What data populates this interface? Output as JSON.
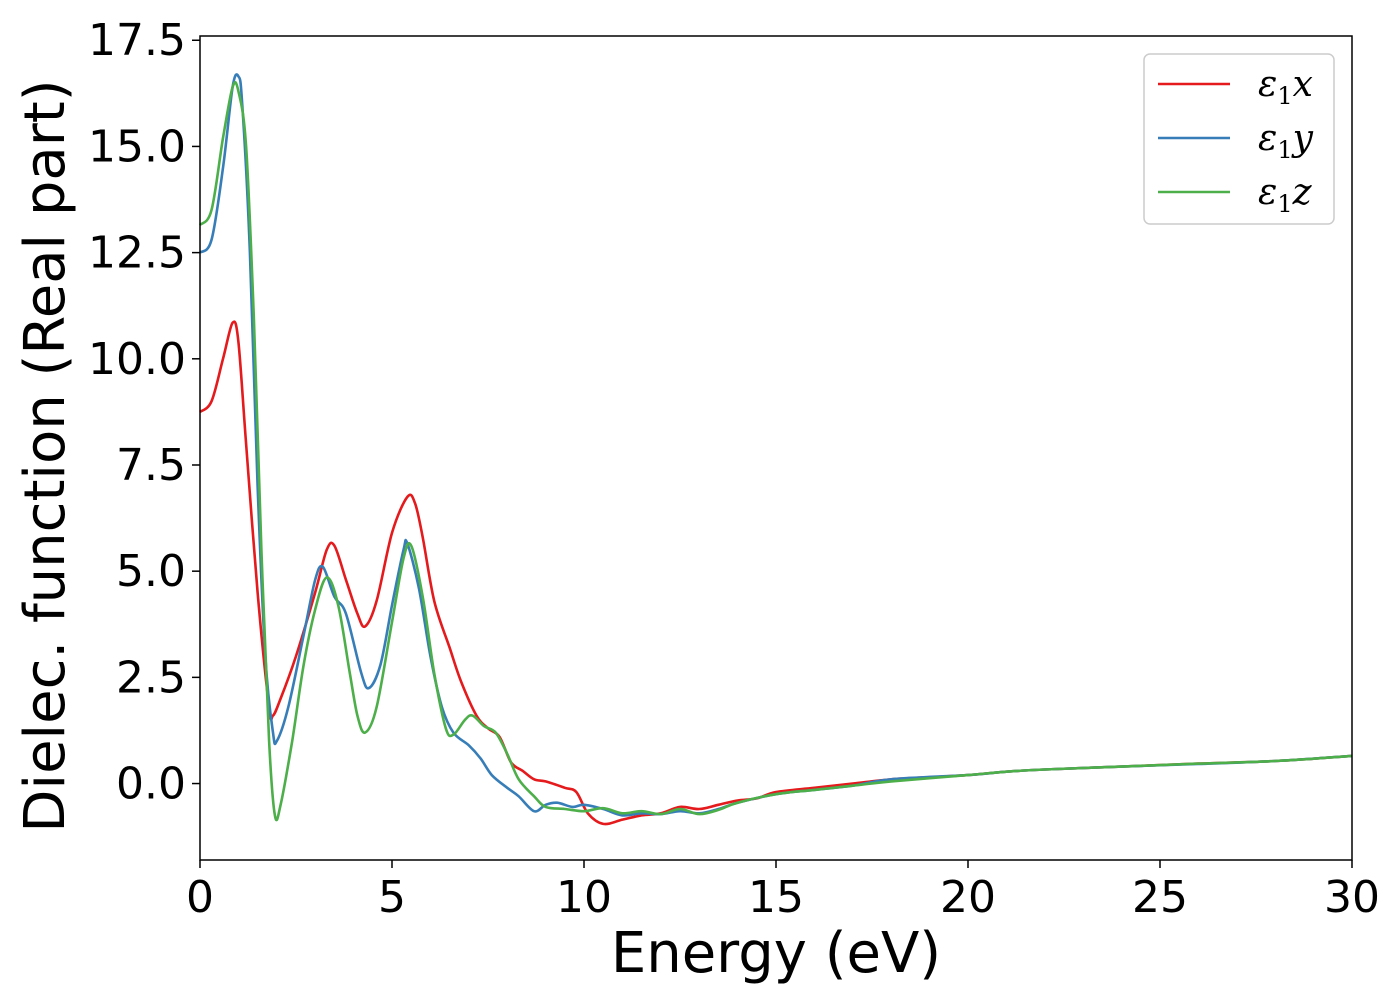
{
  "chart_data": {
    "type": "line",
    "title": "",
    "xlabel": "Energy (eV)",
    "ylabel": "Dielec. function (Real part)",
    "xlim": [
      0,
      30
    ],
    "ylim": [
      -1.8,
      17.6
    ],
    "xticks": [
      0,
      5,
      10,
      15,
      20,
      25,
      30
    ],
    "xtick_labels": [
      "0",
      "5",
      "10",
      "15",
      "20",
      "25",
      "30"
    ],
    "yticks": [
      0,
      2.5,
      5,
      7.5,
      10,
      12.5,
      15,
      17.5
    ],
    "ytick_labels": [
      "0.0",
      "2.5",
      "5.0",
      "7.5",
      "10.0",
      "12.5",
      "15.0",
      "17.5"
    ],
    "grid": false,
    "legend_position": "top-right",
    "series": [
      {
        "name": "ε1x",
        "legend_base": "ε",
        "legend_sub": "1",
        "legend_tail": "x",
        "color": "#e41a1c",
        "points": [
          [
            0,
            8.75
          ],
          [
            0.3,
            9.0
          ],
          [
            0.6,
            10.0
          ],
          [
            0.85,
            10.85
          ],
          [
            1.0,
            10.4
          ],
          [
            1.2,
            8.0
          ],
          [
            1.5,
            4.5
          ],
          [
            1.8,
            1.8
          ],
          [
            1.9,
            1.6
          ],
          [
            2.1,
            2.0
          ],
          [
            2.5,
            3.0
          ],
          [
            3.0,
            4.5
          ],
          [
            3.3,
            5.5
          ],
          [
            3.5,
            5.6
          ],
          [
            3.8,
            4.8
          ],
          [
            4.1,
            4.0
          ],
          [
            4.3,
            3.7
          ],
          [
            4.6,
            4.3
          ],
          [
            5.0,
            5.9
          ],
          [
            5.4,
            6.75
          ],
          [
            5.6,
            6.6
          ],
          [
            5.8,
            5.8
          ],
          [
            6.1,
            4.3
          ],
          [
            6.5,
            3.2
          ],
          [
            6.8,
            2.4
          ],
          [
            7.2,
            1.6
          ],
          [
            7.5,
            1.3
          ],
          [
            7.8,
            1.1
          ],
          [
            8.1,
            0.5
          ],
          [
            8.4,
            0.3
          ],
          [
            8.7,
            0.1
          ],
          [
            9.0,
            0.05
          ],
          [
            9.5,
            -0.1
          ],
          [
            9.8,
            -0.2
          ],
          [
            10.1,
            -0.7
          ],
          [
            10.5,
            -0.95
          ],
          [
            11.0,
            -0.85
          ],
          [
            11.5,
            -0.75
          ],
          [
            12.0,
            -0.7
          ],
          [
            12.5,
            -0.55
          ],
          [
            13.0,
            -0.6
          ],
          [
            13.5,
            -0.5
          ],
          [
            14.0,
            -0.4
          ],
          [
            14.5,
            -0.35
          ],
          [
            15.0,
            -0.2
          ],
          [
            16.0,
            -0.1
          ],
          [
            17.0,
            0.0
          ],
          [
            18.0,
            0.1
          ],
          [
            19.0,
            0.15
          ],
          [
            20.0,
            0.2
          ],
          [
            21.0,
            0.28
          ],
          [
            22.0,
            0.33
          ],
          [
            24.0,
            0.4
          ],
          [
            26.0,
            0.47
          ],
          [
            28.0,
            0.53
          ],
          [
            30.0,
            0.65
          ]
        ]
      },
      {
        "name": "ε1y",
        "legend_base": "ε",
        "legend_sub": "1",
        "legend_tail": "y",
        "color": "#377eb8",
        "points": [
          [
            0,
            12.5
          ],
          [
            0.3,
            12.8
          ],
          [
            0.6,
            14.5
          ],
          [
            0.85,
            16.4
          ],
          [
            1.0,
            16.65
          ],
          [
            1.1,
            16.0
          ],
          [
            1.3,
            12.5
          ],
          [
            1.5,
            7.0
          ],
          [
            1.7,
            3.0
          ],
          [
            1.9,
            1.2
          ],
          [
            2.0,
            1.0
          ],
          [
            2.3,
            1.8
          ],
          [
            2.7,
            3.5
          ],
          [
            3.0,
            4.8
          ],
          [
            3.2,
            5.1
          ],
          [
            3.5,
            4.4
          ],
          [
            3.8,
            4.0
          ],
          [
            4.2,
            2.6
          ],
          [
            4.4,
            2.25
          ],
          [
            4.7,
            2.8
          ],
          [
            5.0,
            4.2
          ],
          [
            5.3,
            5.5
          ],
          [
            5.4,
            5.65
          ],
          [
            5.7,
            4.6
          ],
          [
            6.0,
            3.0
          ],
          [
            6.3,
            1.8
          ],
          [
            6.6,
            1.2
          ],
          [
            7.0,
            0.9
          ],
          [
            7.3,
            0.6
          ],
          [
            7.6,
            0.2
          ],
          [
            8.0,
            -0.1
          ],
          [
            8.3,
            -0.3
          ],
          [
            8.7,
            -0.65
          ],
          [
            9.0,
            -0.5
          ],
          [
            9.3,
            -0.45
          ],
          [
            9.7,
            -0.55
          ],
          [
            10.0,
            -0.5
          ],
          [
            10.5,
            -0.6
          ],
          [
            11.0,
            -0.75
          ],
          [
            11.5,
            -0.7
          ],
          [
            12.0,
            -0.72
          ],
          [
            12.5,
            -0.65
          ],
          [
            13.0,
            -0.7
          ],
          [
            13.5,
            -0.6
          ],
          [
            14.0,
            -0.45
          ],
          [
            15.0,
            -0.25
          ],
          [
            16.0,
            -0.15
          ],
          [
            17.0,
            -0.05
          ],
          [
            18.0,
            0.1
          ],
          [
            20.0,
            0.2
          ],
          [
            21.0,
            0.28
          ],
          [
            22.0,
            0.33
          ],
          [
            24.0,
            0.4
          ],
          [
            26.0,
            0.46
          ],
          [
            28.0,
            0.53
          ],
          [
            30.0,
            0.65
          ]
        ]
      },
      {
        "name": "ε1z",
        "legend_base": "ε",
        "legend_sub": "1",
        "legend_tail": "z",
        "color": "#4daf4a",
        "points": [
          [
            0,
            13.15
          ],
          [
            0.3,
            13.5
          ],
          [
            0.6,
            15.2
          ],
          [
            0.85,
            16.4
          ],
          [
            1.0,
            16.3
          ],
          [
            1.2,
            15.0
          ],
          [
            1.4,
            11.0
          ],
          [
            1.6,
            5.5
          ],
          [
            1.8,
            1.0
          ],
          [
            1.95,
            -0.75
          ],
          [
            2.1,
            -0.5
          ],
          [
            2.4,
            1.0
          ],
          [
            2.7,
            2.8
          ],
          [
            3.0,
            4.1
          ],
          [
            3.3,
            4.85
          ],
          [
            3.6,
            4.2
          ],
          [
            3.9,
            2.6
          ],
          [
            4.1,
            1.6
          ],
          [
            4.3,
            1.2
          ],
          [
            4.6,
            1.8
          ],
          [
            5.0,
            3.8
          ],
          [
            5.3,
            5.3
          ],
          [
            5.5,
            5.6
          ],
          [
            5.8,
            4.4
          ],
          [
            6.1,
            2.6
          ],
          [
            6.4,
            1.3
          ],
          [
            6.6,
            1.15
          ],
          [
            6.9,
            1.5
          ],
          [
            7.1,
            1.6
          ],
          [
            7.4,
            1.35
          ],
          [
            7.7,
            1.2
          ],
          [
            8.0,
            0.7
          ],
          [
            8.3,
            0.1
          ],
          [
            8.7,
            -0.3
          ],
          [
            9.0,
            -0.55
          ],
          [
            9.5,
            -0.6
          ],
          [
            10.0,
            -0.65
          ],
          [
            10.5,
            -0.58
          ],
          [
            11.0,
            -0.7
          ],
          [
            11.5,
            -0.65
          ],
          [
            12.0,
            -0.72
          ],
          [
            12.5,
            -0.6
          ],
          [
            13.0,
            -0.72
          ],
          [
            13.5,
            -0.62
          ],
          [
            14.0,
            -0.45
          ],
          [
            15.0,
            -0.25
          ],
          [
            16.0,
            -0.15
          ],
          [
            17.0,
            -0.05
          ],
          [
            18.0,
            0.05
          ],
          [
            20.0,
            0.2
          ],
          [
            21.0,
            0.28
          ],
          [
            22.0,
            0.33
          ],
          [
            24.0,
            0.4
          ],
          [
            26.0,
            0.47
          ],
          [
            28.0,
            0.53
          ],
          [
            30.0,
            0.65
          ]
        ]
      }
    ]
  }
}
